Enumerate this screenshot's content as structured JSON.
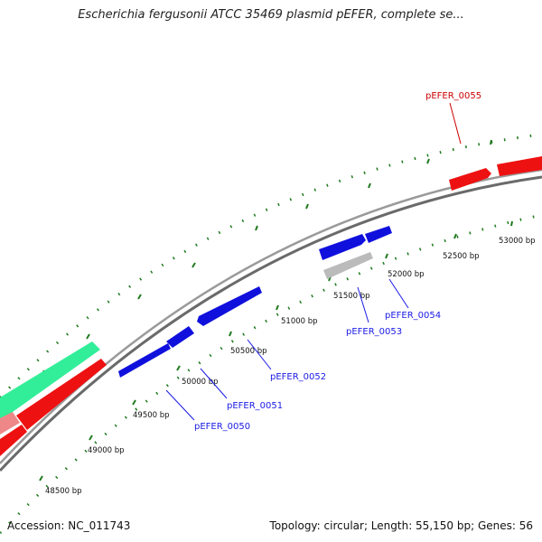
{
  "title": "Escherichia fergusonii ATCC 35469 plasmid pEFER, complete se...",
  "footer": {
    "accession": "Accession: NC_011743",
    "summary": "Topology: circular; Length: 55,150 bp; Genes: 56"
  },
  "ticks": [
    "48500 bp",
    "49000 bp",
    "49500 bp",
    "50000 bp",
    "50500 bp",
    "51000 bp",
    "51500 bp",
    "52000 bp",
    "52500 bp",
    "53000 bp"
  ],
  "genes": [
    {
      "label": "pEFER_0050",
      "color": "#1a1ae6"
    },
    {
      "label": "pEFER_0051",
      "color": "#1a1ae6"
    },
    {
      "label": "pEFER_0052",
      "color": "#1a1ae6"
    },
    {
      "label": "pEFER_0053",
      "color": "#1a1ae6"
    },
    {
      "label": "pEFER_0054",
      "color": "#1a1ae6"
    },
    {
      "label": "pEFER_0055",
      "color": "#cc0000"
    }
  ],
  "colors": {
    "backbone": "#888888",
    "tick_mark": "#1e7a1e",
    "cds_blue": "#1010dd",
    "cds_red": "#ee1111",
    "cds_gray": "#bbbbbb",
    "cds_green": "#33ee99",
    "cds_pink": "#ee8888"
  }
}
